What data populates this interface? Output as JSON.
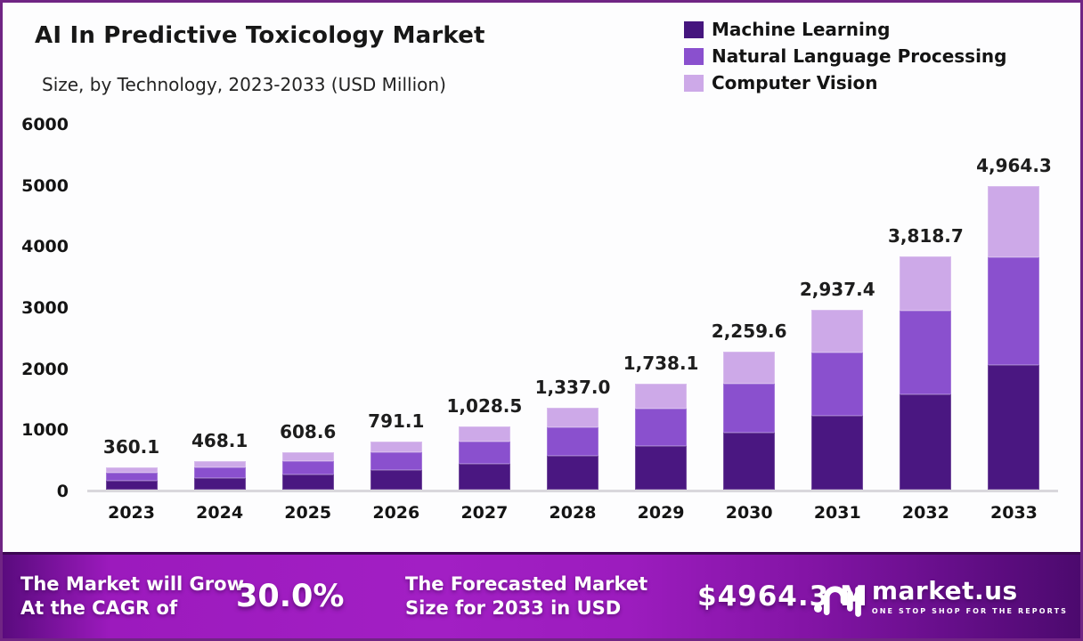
{
  "header": {
    "title": "AI In Predictive Toxicology Market",
    "subtitle": "Size, by Technology, 2023-2033 (USD Million)"
  },
  "legend": [
    {
      "label": "Machine Learning",
      "color": "#45157e"
    },
    {
      "label": "Natural Language Processing",
      "color": "#8a50ce"
    },
    {
      "label": "Computer Vision",
      "color": "#cda9e8"
    }
  ],
  "chart_data": {
    "type": "bar",
    "stacked": true,
    "title": "AI In Predictive Toxicology Market Size, by Technology, 2023-2033 (USD Million)",
    "xlabel": "",
    "ylabel": "USD Million",
    "categories": [
      "2023",
      "2024",
      "2025",
      "2026",
      "2027",
      "2028",
      "2029",
      "2030",
      "2031",
      "2032",
      "2033"
    ],
    "series": [
      {
        "name": "Machine Learning",
        "color": "#4a1781",
        "values": [
          147.6,
          191.9,
          249.5,
          324.4,
          421.7,
          548.2,
          712.6,
          926.4,
          1204.3,
          1565.7,
          2035.4
        ]
      },
      {
        "name": "Natural Language Processing",
        "color": "#8a50ce",
        "values": [
          127.8,
          166.2,
          216.1,
          280.8,
          365.1,
          474.6,
          617.0,
          802.2,
          1042.8,
          1355.6,
          1762.3
        ]
      },
      {
        "name": "Computer Vision",
        "color": "#cda9e8",
        "values": [
          84.7,
          110.0,
          143.0,
          185.9,
          241.7,
          314.2,
          408.5,
          531.0,
          690.3,
          897.4,
          1166.6
        ]
      }
    ],
    "totals": [
      360.1,
      468.1,
      608.6,
      791.1,
      1028.5,
      1337.0,
      1738.1,
      2259.6,
      2937.4,
      3818.7,
      4964.3
    ],
    "total_labels": [
      "360.1",
      "468.1",
      "608.6",
      "791.1",
      "1,028.5",
      "1,337.0",
      "1,738.1",
      "2,259.6",
      "2,937.4",
      "3,818.7",
      "4,964.3"
    ],
    "ylim": [
      0,
      6000
    ],
    "yticks": [
      0,
      1000,
      2000,
      3000,
      4000,
      5000,
      6000
    ],
    "grid": false,
    "legend_position": "top-right"
  },
  "footer": {
    "cagr_line1": "The Market will Grow",
    "cagr_line2": "At the CAGR of",
    "cagr_value": "30.0%",
    "forecast_line1": "The Forecasted Market",
    "forecast_line2": "Size for 2033 in USD",
    "forecast_value": "$4964.3 M",
    "brand_name": "market.us",
    "brand_tagline": "ONE STOP SHOP FOR THE REPORTS",
    "accent_colors": {
      "banner_bright": "#a21fc4",
      "banner_dark": "#4c0a6e"
    }
  }
}
